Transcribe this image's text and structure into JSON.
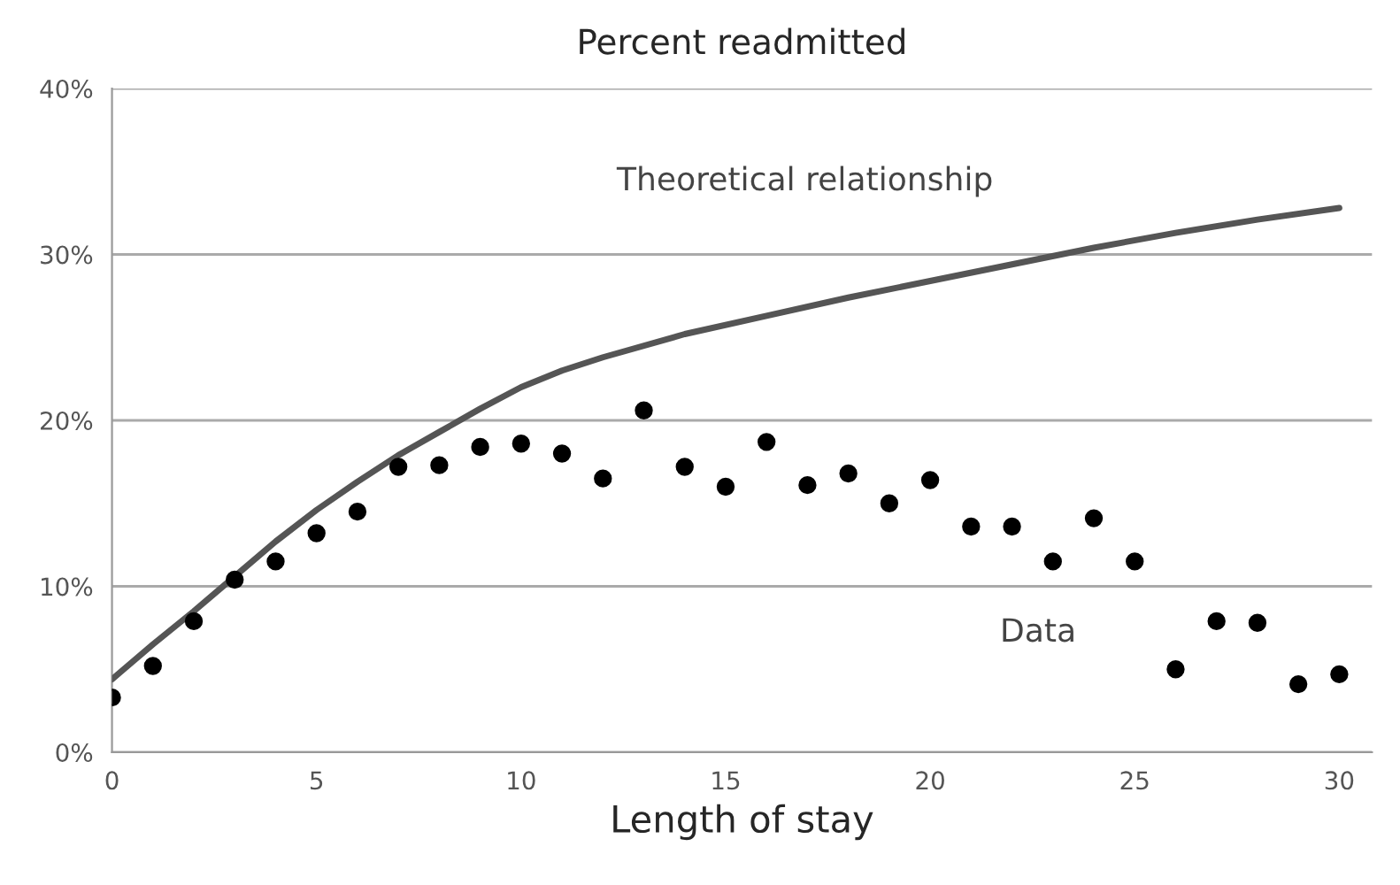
{
  "chart_data": {
    "type": "scatter",
    "title": "Percent readmitted",
    "xlabel": "Length of stay",
    "xlim": [
      0,
      30.8
    ],
    "xticks": [
      0,
      5,
      10,
      15,
      20,
      25,
      30
    ],
    "ylim": [
      0,
      40
    ],
    "yticks": [
      {
        "value": 0,
        "label": "0%"
      },
      {
        "value": 10,
        "label": "10%"
      },
      {
        "value": 20,
        "label": "20%"
      },
      {
        "value": 30,
        "label": "30%"
      },
      {
        "value": 40,
        "label": "40%"
      }
    ],
    "grid": "y",
    "legend": false,
    "series": [
      {
        "type": "line",
        "name": "Theoretical relationship",
        "color": "#555555",
        "marker": "none",
        "line_style": "solid",
        "x": [
          0,
          1,
          2,
          3,
          4,
          5,
          6,
          7,
          8,
          9,
          10,
          11,
          12,
          14,
          16,
          18,
          20,
          22,
          24,
          26,
          28,
          30
        ],
        "values": [
          4.4,
          6.5,
          8.5,
          10.6,
          12.7,
          14.6,
          16.3,
          17.9,
          19.3,
          20.7,
          22.0,
          23.0,
          23.8,
          25.2,
          26.3,
          27.4,
          28.4,
          29.4,
          30.4,
          31.3,
          32.1,
          32.8
        ]
      },
      {
        "name": "Data",
        "color": "#000000",
        "marker": "circle",
        "x": [
          0,
          1,
          2,
          3,
          4,
          5,
          6,
          7,
          8,
          9,
          10,
          11,
          12,
          13,
          14,
          15,
          16,
          17,
          18,
          19,
          20,
          21,
          22,
          23,
          24,
          25,
          26,
          27,
          28,
          29,
          30
        ],
        "values": [
          3.3,
          5.2,
          7.9,
          10.4,
          11.5,
          13.2,
          14.5,
          17.2,
          17.3,
          18.4,
          18.6,
          18.0,
          16.5,
          20.6,
          17.2,
          16.0,
          18.7,
          16.1,
          16.8,
          15.0,
          16.4,
          13.6,
          13.6,
          11.5,
          14.1,
          11.5,
          5.0,
          7.9,
          7.8,
          4.1,
          4.7
        ]
      }
    ]
  }
}
